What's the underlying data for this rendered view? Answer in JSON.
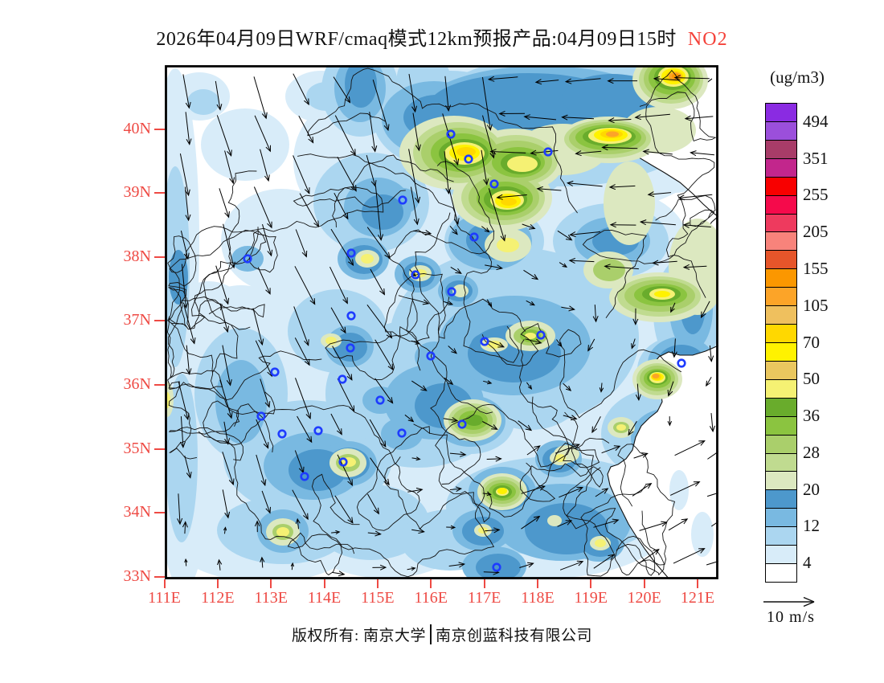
{
  "title": {
    "main": "2026年04月09日WRF/cmaq模式12km预报产品:04月09日15时",
    "species": "NO2",
    "species_color": "#f4423a"
  },
  "colorbar": {
    "unit_label": "(ug/m3)",
    "tick_labels": [
      "494",
      "351",
      "255",
      "205",
      "155",
      "105",
      "70",
      "50",
      "36",
      "28",
      "20",
      "12",
      "4"
    ],
    "cell_colors": [
      "#8A2BE2",
      "#9B4FDB",
      "#A83C68",
      "#C2268C",
      "#F80000",
      "#F50A4B",
      "#EE3A5E",
      "#F8837B",
      "#E6552A",
      "#FB9700",
      "#FCA428",
      "#EFC05E",
      "#FFD800",
      "#FFF200",
      "#EAC75F",
      "#F5F173",
      "#69AC2C",
      "#8BC440",
      "#AACF6B",
      "#C0DB90",
      "#DCE8C0",
      "#4D98CC",
      "#79B9E1",
      "#ABD6F0",
      "#D8ECF9",
      "#FFFFFF"
    ]
  },
  "axes": {
    "lat_labels": [
      "40N",
      "39N",
      "38N",
      "37N",
      "36N",
      "35N",
      "34N",
      "33N"
    ],
    "lon_labels": [
      "111E",
      "112E",
      "113E",
      "114E",
      "115E",
      "116E",
      "117E",
      "118E",
      "119E",
      "120E",
      "121E"
    ],
    "label_color": "#ee4a44"
  },
  "wind_legend": {
    "label": "10 m/s"
  },
  "footer": {
    "left": "版权所有: 南京大学",
    "right": "南京创蓝科技有限公司"
  },
  "map": {
    "city_marker_color": "#1e3cff"
  }
}
